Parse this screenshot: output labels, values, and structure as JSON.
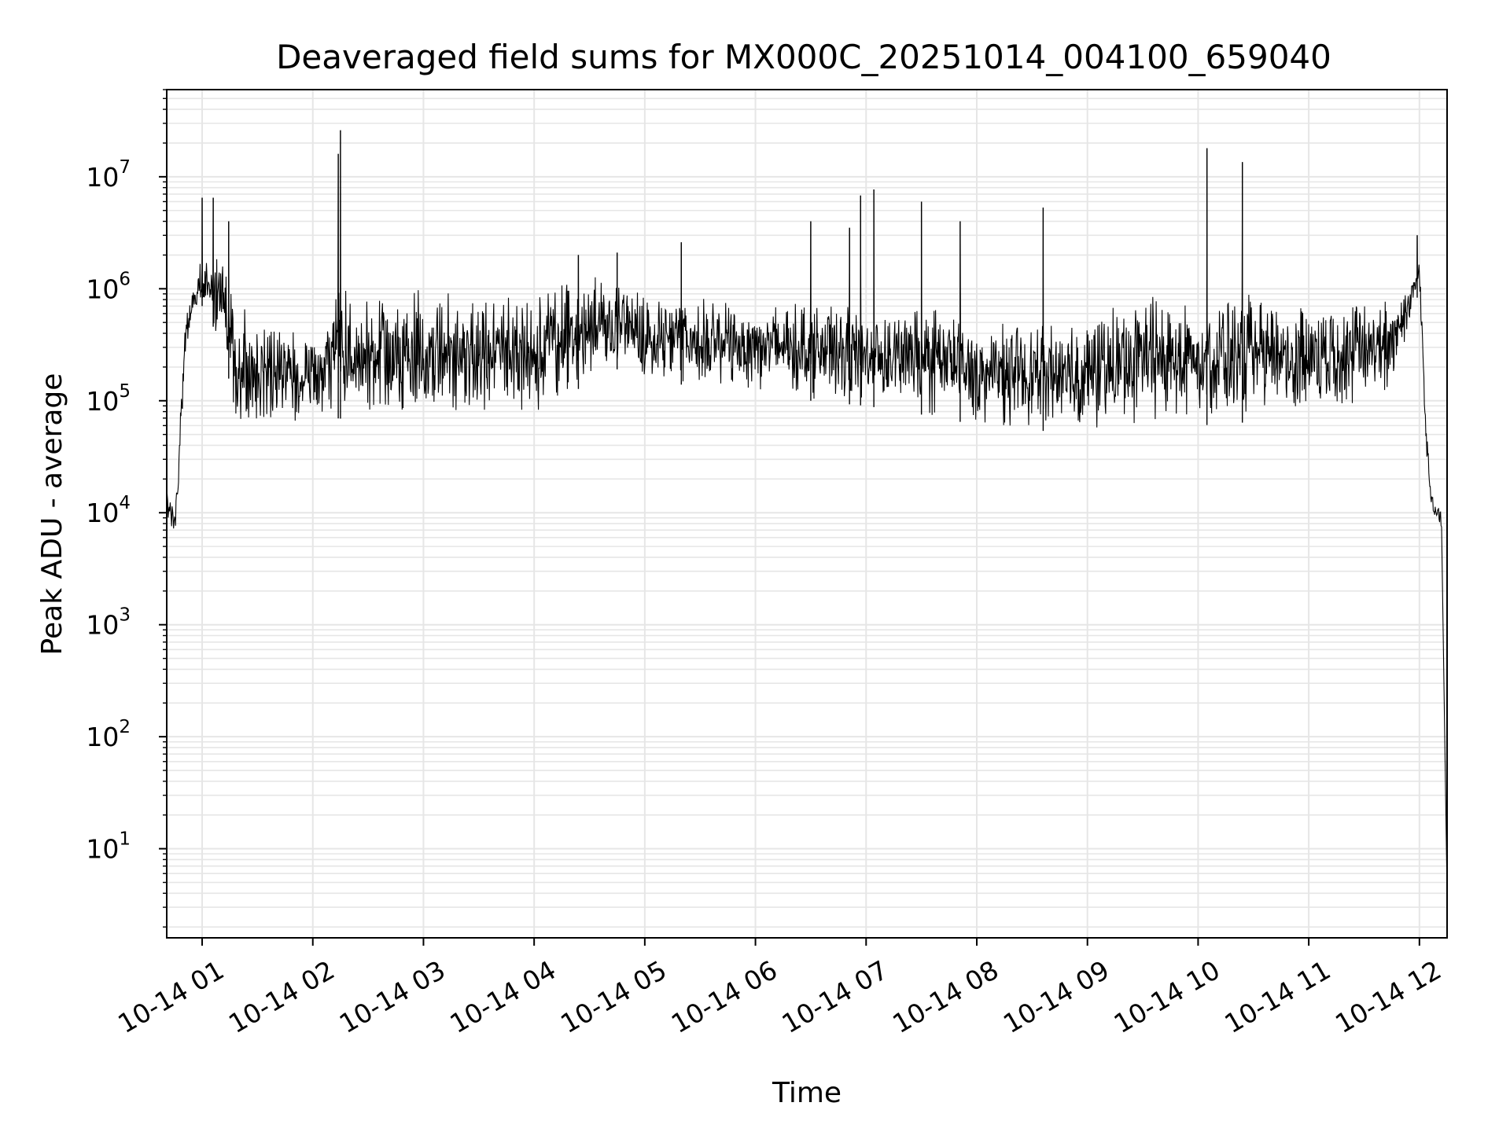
{
  "chart_data": {
    "type": "line",
    "title": "Deaveraged field sums for MX000C_20251014_004100_659040",
    "xlabel": "Time",
    "ylabel": "Peak ADU - average",
    "yscale": "log",
    "ylim": [
      1.6,
      60000000
    ],
    "xlim_hours": [
      0.68,
      12.25
    ],
    "grid": true,
    "line_color": "#000000",
    "grid_color": "#e6e6e6",
    "x_ticks": [
      {
        "hour": 1,
        "label": "10-14 01"
      },
      {
        "hour": 2,
        "label": "10-14 02"
      },
      {
        "hour": 3,
        "label": "10-14 03"
      },
      {
        "hour": 4,
        "label": "10-14 04"
      },
      {
        "hour": 5,
        "label": "10-14 05"
      },
      {
        "hour": 6,
        "label": "10-14 06"
      },
      {
        "hour": 7,
        "label": "10-14 07"
      },
      {
        "hour": 8,
        "label": "10-14 08"
      },
      {
        "hour": 9,
        "label": "10-14 09"
      },
      {
        "hour": 10,
        "label": "10-14 10"
      },
      {
        "hour": 11,
        "label": "10-14 11"
      },
      {
        "hour": 12,
        "label": "10-14 12"
      }
    ],
    "y_ticks": [
      {
        "exp": 1,
        "base": "10",
        "sup": "1"
      },
      {
        "exp": 2,
        "base": "10",
        "sup": "2"
      },
      {
        "exp": 3,
        "base": "10",
        "sup": "3"
      },
      {
        "exp": 4,
        "base": "10",
        "sup": "4"
      },
      {
        "exp": 5,
        "base": "10",
        "sup": "5"
      },
      {
        "exp": 6,
        "base": "10",
        "sup": "6"
      },
      {
        "exp": 7,
        "base": "10",
        "sup": "7"
      }
    ],
    "envelope": [
      {
        "t": 0.68,
        "low": 8000,
        "high": 20000
      },
      {
        "t": 0.76,
        "low": 6000,
        "high": 12000
      },
      {
        "t": 0.85,
        "low": 200000,
        "high": 600000
      },
      {
        "t": 0.92,
        "low": 600000,
        "high": 1100000
      },
      {
        "t": 1.0,
        "low": 700000,
        "high": 2000000
      },
      {
        "t": 1.2,
        "low": 300000,
        "high": 2000000
      },
      {
        "t": 1.3,
        "low": 60000,
        "high": 1000000
      },
      {
        "t": 1.6,
        "low": 60000,
        "high": 500000
      },
      {
        "t": 2.0,
        "low": 60000,
        "high": 400000
      },
      {
        "t": 2.2,
        "low": 70000,
        "high": 1000000
      },
      {
        "t": 3.0,
        "low": 60000,
        "high": 1000000
      },
      {
        "t": 4.0,
        "low": 70000,
        "high": 1000000
      },
      {
        "t": 4.7,
        "low": 200000,
        "high": 1500000
      },
      {
        "t": 5.0,
        "low": 150000,
        "high": 900000
      },
      {
        "t": 6.0,
        "low": 120000,
        "high": 800000
      },
      {
        "t": 6.5,
        "low": 100000,
        "high": 900000
      },
      {
        "t": 7.0,
        "low": 90000,
        "high": 700000
      },
      {
        "t": 7.7,
        "low": 70000,
        "high": 800000
      },
      {
        "t": 8.0,
        "low": 60000,
        "high": 500000
      },
      {
        "t": 9.0,
        "low": 50000,
        "high": 600000
      },
      {
        "t": 9.5,
        "low": 60000,
        "high": 1000000
      },
      {
        "t": 10.0,
        "low": 60000,
        "high": 1000000
      },
      {
        "t": 11.0,
        "low": 70000,
        "high": 900000
      },
      {
        "t": 11.7,
        "low": 100000,
        "high": 900000
      },
      {
        "t": 11.9,
        "low": 400000,
        "high": 1200000
      },
      {
        "t": 12.0,
        "low": 1000000,
        "high": 2000000
      },
      {
        "t": 12.05,
        "low": 50000,
        "high": 200000
      },
      {
        "t": 12.1,
        "low": 10000,
        "high": 20000
      },
      {
        "t": 12.2,
        "low": 6000,
        "high": 10000
      }
    ],
    "spikes": [
      {
        "t": 1.0,
        "v": 6500000
      },
      {
        "t": 1.1,
        "v": 6500000
      },
      {
        "t": 1.24,
        "v": 4000000
      },
      {
        "t": 2.23,
        "v": 16000000
      },
      {
        "t": 2.25,
        "v": 26000000
      },
      {
        "t": 4.4,
        "v": 2000000
      },
      {
        "t": 4.75,
        "v": 2100000
      },
      {
        "t": 5.33,
        "v": 2600000
      },
      {
        "t": 6.5,
        "v": 4000000
      },
      {
        "t": 6.85,
        "v": 3500000
      },
      {
        "t": 6.95,
        "v": 6800000
      },
      {
        "t": 7.07,
        "v": 7700000
      },
      {
        "t": 7.5,
        "v": 6000000
      },
      {
        "t": 7.85,
        "v": 4000000
      },
      {
        "t": 8.6,
        "v": 5300000
      },
      {
        "t": 10.08,
        "v": 18000000
      },
      {
        "t": 10.4,
        "v": 13500000
      },
      {
        "t": 11.98,
        "v": 3000000
      }
    ],
    "end_point": {
      "t": 12.25,
      "v": 4
    }
  }
}
